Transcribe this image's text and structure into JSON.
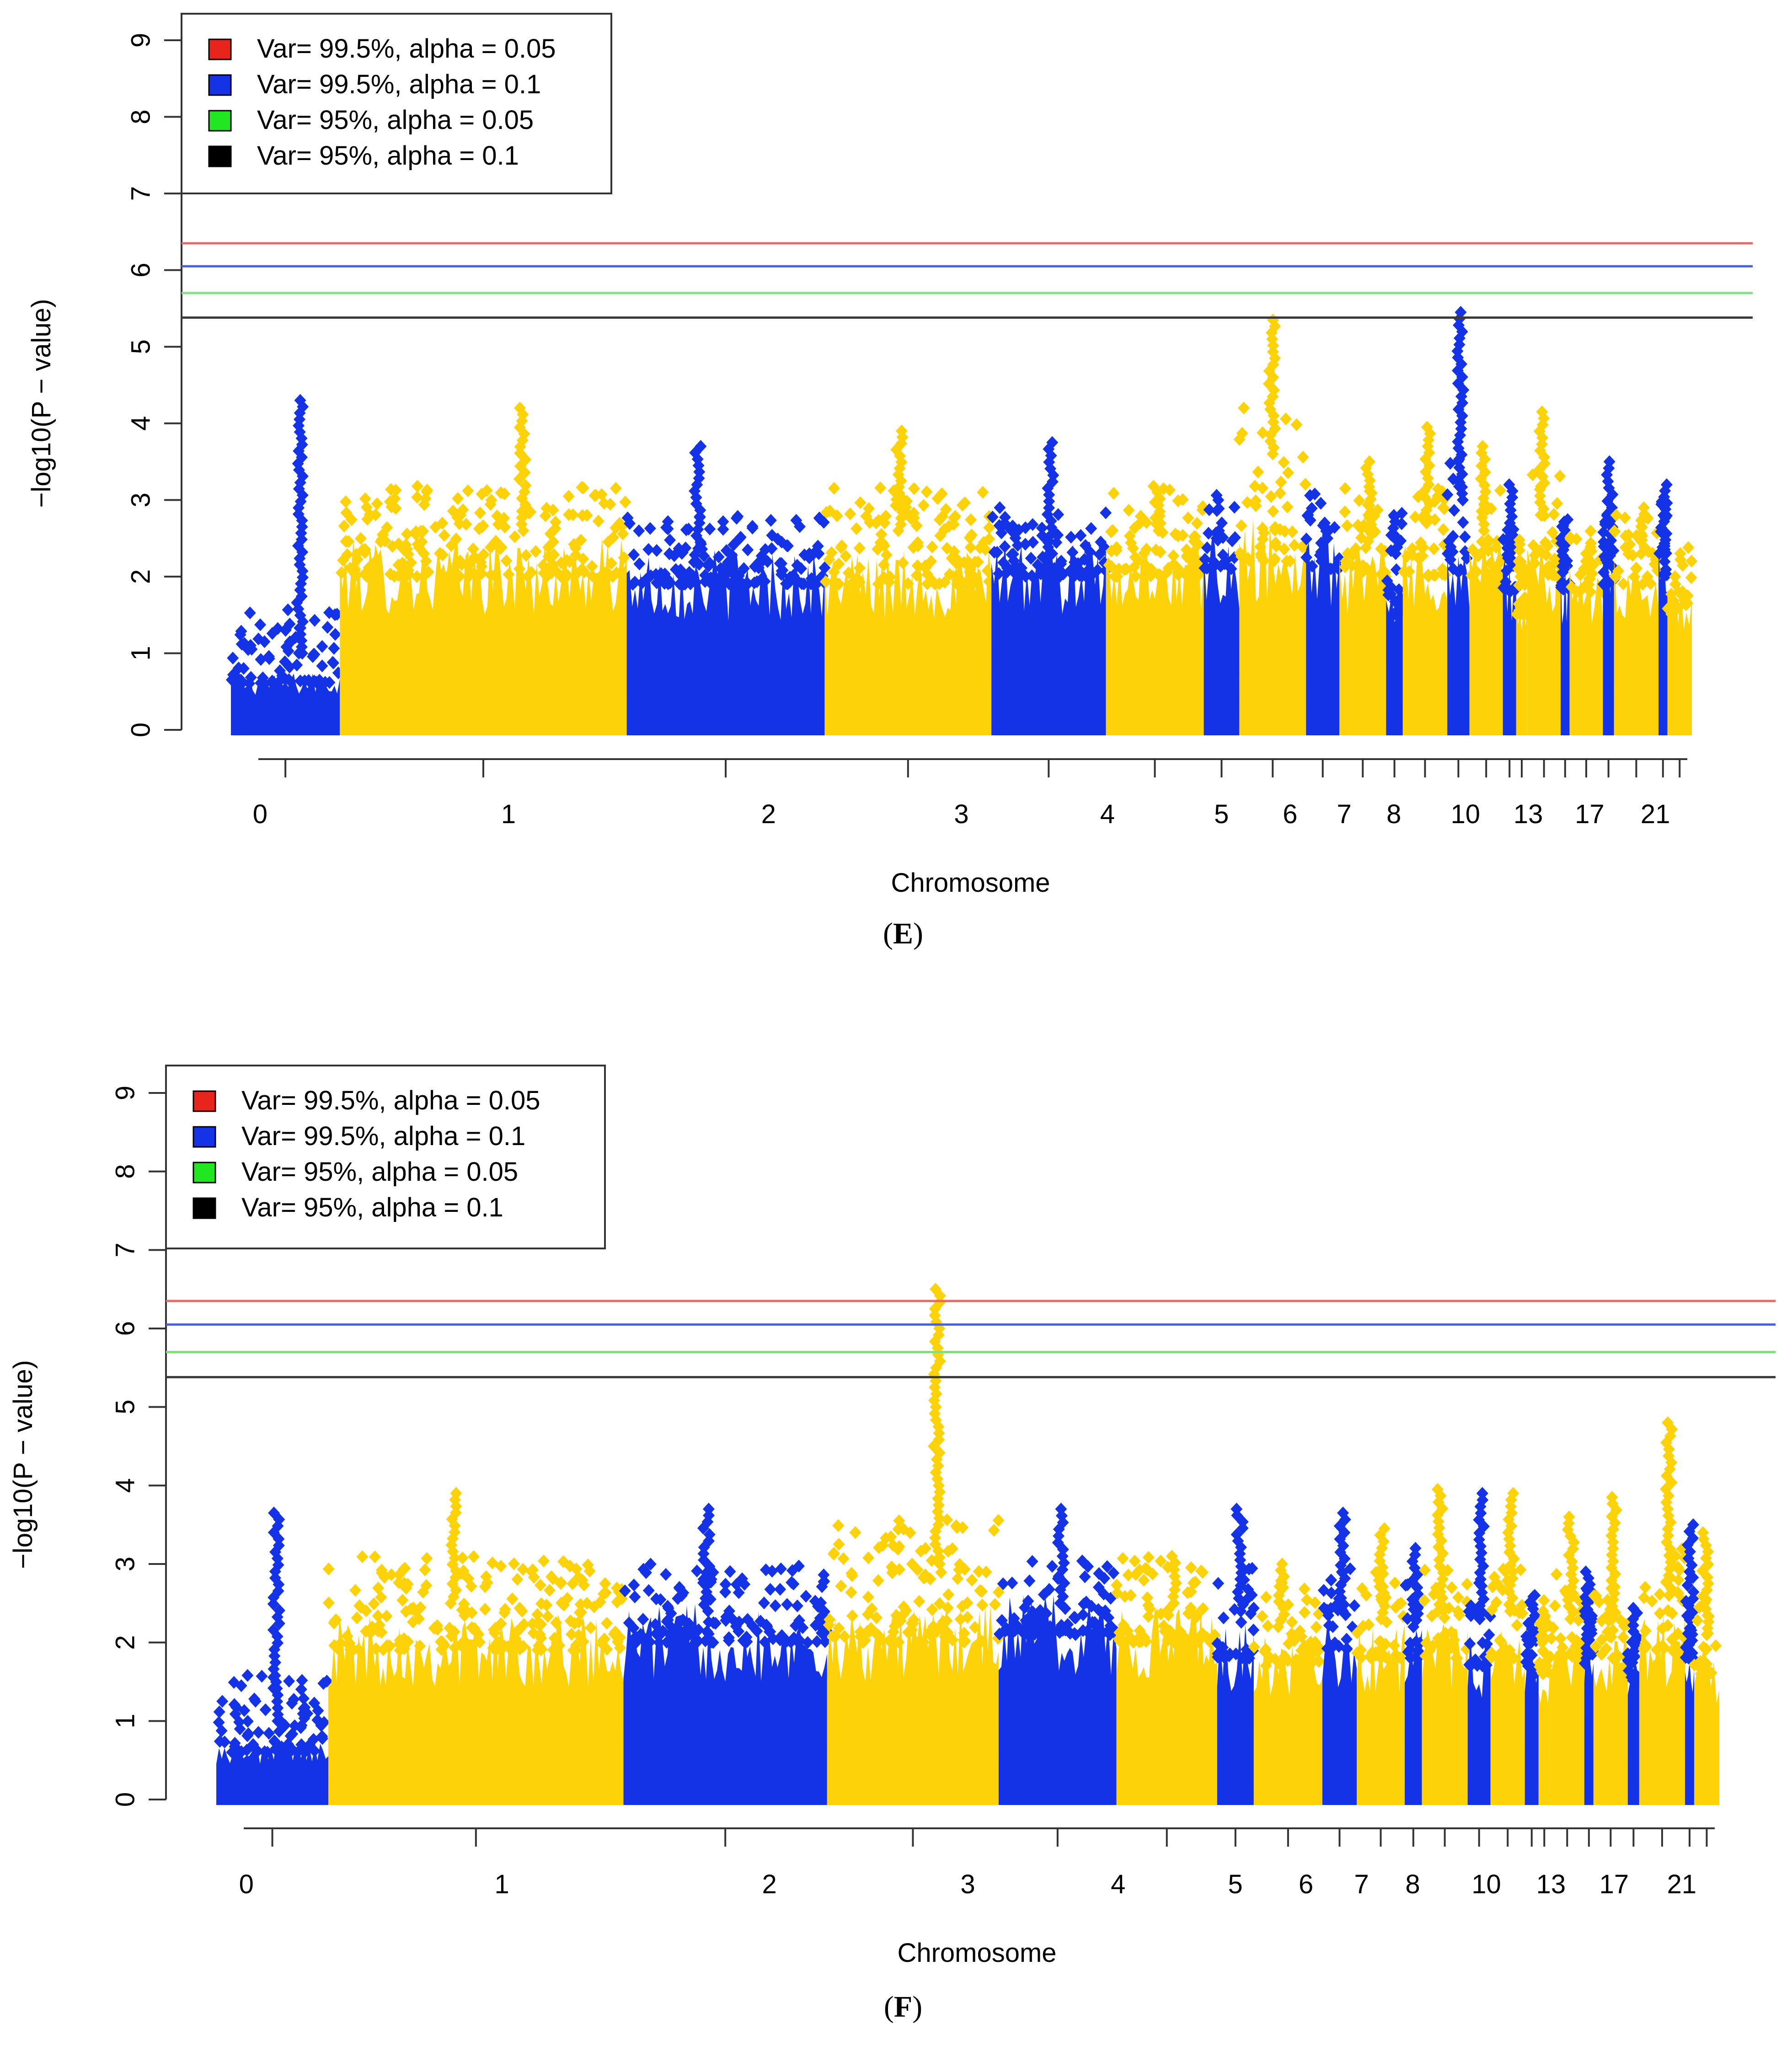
{
  "colors": {
    "blue_points": "#1432E6",
    "yellow_points": "#FDD208",
    "threshold_red": "#E86A63",
    "threshold_blue": "#4A62D8",
    "threshold_green": "#82E07E",
    "threshold_black": "#3A3A3A",
    "legend_red": "#E8241C",
    "legend_blue": "#1432E6",
    "legend_green": "#22E622",
    "legend_black": "#000000"
  },
  "chart_data": [
    {
      "type": "scatter",
      "panel_label": "E",
      "xlabel": "Chromosome",
      "ylabel": "−log10(P − value)",
      "ylim": [
        0,
        9
      ],
      "y_ticks": [
        "0",
        "1",
        "2",
        "3",
        "4",
        "5",
        "6",
        "7",
        "8",
        "9"
      ],
      "x_tick_labels": [
        "0",
        "1",
        "2",
        "3",
        "4",
        "5",
        "6",
        "7",
        "8",
        "10",
        "13",
        "17",
        "21"
      ],
      "legend": [
        {
          "label": "Var= 99.5%, alpha = 0.05",
          "color": "legend_red"
        },
        {
          "label": "Var= 99.5%, alpha = 0.1",
          "color": "legend_blue"
        },
        {
          "label": "Var= 95%, alpha = 0.05",
          "color": "legend_green"
        },
        {
          "label": "Var= 95%, alpha = 0.1",
          "color": "legend_black"
        }
      ],
      "thresholds": [
        {
          "name": "Var 99.5% alpha 0.05",
          "y": 6.35,
          "color": "threshold_red"
        },
        {
          "name": "Var 99.5% alpha 0.1",
          "y": 6.05,
          "color": "threshold_blue"
        },
        {
          "name": "Var 95% alpha 0.05",
          "y": 5.7,
          "color": "threshold_green"
        },
        {
          "name": "Var 95% alpha 0.1",
          "y": 5.38,
          "color": "threshold_black"
        }
      ],
      "chromosomes": [
        {
          "chr": "0",
          "color": "blue",
          "peak": 4.3,
          "base": 0.6,
          "mid": 1.0
        },
        {
          "chr": "1",
          "color": "yellow",
          "peak": 4.2,
          "base": 2.0,
          "mid": 2.6
        },
        {
          "chr": "2",
          "color": "blue",
          "peak": 3.7,
          "base": 1.9,
          "mid": 2.2
        },
        {
          "chr": "3",
          "color": "yellow",
          "peak": 3.9,
          "base": 1.9,
          "mid": 2.6
        },
        {
          "chr": "4",
          "color": "blue",
          "peak": 3.75,
          "base": 2.0,
          "mid": 2.3
        },
        {
          "chr": "5",
          "color": "yellow",
          "peak": 3.1,
          "base": 2.0,
          "mid": 2.6
        },
        {
          "chr": "6",
          "color": "blue",
          "peak": 2.7,
          "base": 2.1,
          "mid": 2.5
        },
        {
          "chr": "7",
          "color": "yellow",
          "peak": 5.35,
          "base": 2.2,
          "mid": 3.6
        },
        {
          "chr": "8",
          "color": "blue",
          "peak": 2.7,
          "base": 2.1,
          "mid": 2.5
        },
        {
          "chr": "9",
          "color": "yellow",
          "peak": 3.5,
          "base": 2.0,
          "mid": 2.6
        },
        {
          "chr": "10",
          "color": "blue",
          "peak": 2.8,
          "base": 1.5,
          "mid": 2.3
        },
        {
          "chr": "11",
          "color": "yellow",
          "peak": 3.95,
          "base": 2.0,
          "mid": 2.7
        },
        {
          "chr": "12",
          "color": "blue",
          "peak": 5.45,
          "base": 2.0,
          "mid": 3.0
        },
        {
          "chr": "13",
          "color": "yellow",
          "peak": 3.7,
          "base": 2.0,
          "mid": 2.6
        },
        {
          "chr": "14",
          "color": "blue",
          "peak": 3.2,
          "base": 1.8,
          "mid": 2.2
        },
        {
          "chr": "15",
          "color": "yellow",
          "peak": 2.2,
          "base": 1.5,
          "mid": 2.0
        },
        {
          "chr": "16",
          "color": "yellow",
          "peak": 4.15,
          "base": 2.0,
          "mid": 2.8
        },
        {
          "chr": "17",
          "color": "blue",
          "peak": 2.5,
          "base": 1.8,
          "mid": 2.2
        },
        {
          "chr": "18",
          "color": "yellow",
          "peak": 2.3,
          "base": 1.8,
          "mid": 2.1
        },
        {
          "chr": "19",
          "color": "blue",
          "peak": 3.5,
          "base": 1.9,
          "mid": 2.3
        },
        {
          "chr": "20",
          "color": "yellow",
          "peak": 2.9,
          "base": 1.9,
          "mid": 2.3
        },
        {
          "chr": "21",
          "color": "blue",
          "peak": 3.2,
          "base": 2.0,
          "mid": 2.4
        },
        {
          "chr": "22",
          "color": "yellow",
          "peak": 2.0,
          "base": 1.5,
          "mid": 1.8
        }
      ]
    },
    {
      "type": "scatter",
      "panel_label": "F",
      "xlabel": "Chromosome",
      "ylabel": "−log10(P − value)",
      "ylim": [
        0,
        9
      ],
      "y_ticks": [
        "0",
        "1",
        "2",
        "3",
        "4",
        "5",
        "6",
        "7",
        "8",
        "9"
      ],
      "x_tick_labels": [
        "0",
        "1",
        "2",
        "3",
        "4",
        "5",
        "6",
        "7",
        "8",
        "10",
        "13",
        "17",
        "21"
      ],
      "legend": [
        {
          "label": "Var= 99.5%, alpha = 0.05",
          "color": "legend_red"
        },
        {
          "label": "Var= 99.5%, alpha = 0.1",
          "color": "legend_blue"
        },
        {
          "label": "Var= 95%, alpha = 0.05",
          "color": "legend_green"
        },
        {
          "label": "Var= 95%, alpha = 0.1",
          "color": "legend_black"
        }
      ],
      "thresholds": [
        {
          "name": "Var 99.5% alpha 0.05",
          "y": 6.35,
          "color": "threshold_red"
        },
        {
          "name": "Var 99.5% alpha 0.1",
          "y": 6.05,
          "color": "threshold_blue"
        },
        {
          "name": "Var 95% alpha 0.05",
          "y": 5.7,
          "color": "threshold_green"
        },
        {
          "name": "Var 95% alpha 0.1",
          "y": 5.38,
          "color": "threshold_black"
        }
      ],
      "chromosomes": [
        {
          "chr": "0",
          "color": "blue",
          "peak": 3.65,
          "base": 0.6,
          "mid": 1.0
        },
        {
          "chr": "1",
          "color": "yellow",
          "peak": 3.9,
          "base": 1.9,
          "mid": 2.5
        },
        {
          "chr": "2",
          "color": "blue",
          "peak": 3.7,
          "base": 2.0,
          "mid": 2.4
        },
        {
          "chr": "3",
          "color": "yellow",
          "peak": 6.5,
          "base": 2.0,
          "mid": 3.0
        },
        {
          "chr": "4",
          "color": "blue",
          "peak": 3.7,
          "base": 2.1,
          "mid": 2.5
        },
        {
          "chr": "5",
          "color": "yellow",
          "peak": 3.1,
          "base": 2.0,
          "mid": 2.5
        },
        {
          "chr": "6",
          "color": "blue",
          "peak": 3.7,
          "base": 1.8,
          "mid": 2.4
        },
        {
          "chr": "7",
          "color": "yellow",
          "peak": 3.0,
          "base": 1.7,
          "mid": 2.2
        },
        {
          "chr": "8",
          "color": "blue",
          "peak": 3.65,
          "base": 1.9,
          "mid": 2.4
        },
        {
          "chr": "9",
          "color": "yellow",
          "peak": 3.45,
          "base": 1.8,
          "mid": 2.3
        },
        {
          "chr": "10",
          "color": "blue",
          "peak": 3.2,
          "base": 1.8,
          "mid": 2.2
        },
        {
          "chr": "11",
          "color": "yellow",
          "peak": 3.95,
          "base": 1.8,
          "mid": 2.4
        },
        {
          "chr": "12",
          "color": "blue",
          "peak": 3.9,
          "base": 1.7,
          "mid": 2.3
        },
        {
          "chr": "13",
          "color": "yellow",
          "peak": 3.9,
          "base": 1.8,
          "mid": 2.4
        },
        {
          "chr": "14",
          "color": "blue",
          "peak": 2.6,
          "base": 1.6,
          "mid": 2.0
        },
        {
          "chr": "15",
          "color": "yellow",
          "peak": 2.4,
          "base": 1.6,
          "mid": 2.0
        },
        {
          "chr": "16",
          "color": "yellow",
          "peak": 3.6,
          "base": 1.8,
          "mid": 2.3
        },
        {
          "chr": "17",
          "color": "blue",
          "peak": 2.9,
          "base": 1.7,
          "mid": 2.1
        },
        {
          "chr": "18",
          "color": "yellow",
          "peak": 3.85,
          "base": 1.8,
          "mid": 2.3
        },
        {
          "chr": "19",
          "color": "blue",
          "peak": 2.3,
          "base": 1.5,
          "mid": 1.9
        },
        {
          "chr": "20",
          "color": "yellow",
          "peak": 4.8,
          "base": 1.9,
          "mid": 2.6
        },
        {
          "chr": "21",
          "color": "blue",
          "peak": 3.5,
          "base": 1.8,
          "mid": 2.3
        },
        {
          "chr": "22",
          "color": "yellow",
          "peak": 3.4,
          "base": 1.6,
          "mid": 2.1
        }
      ]
    }
  ]
}
